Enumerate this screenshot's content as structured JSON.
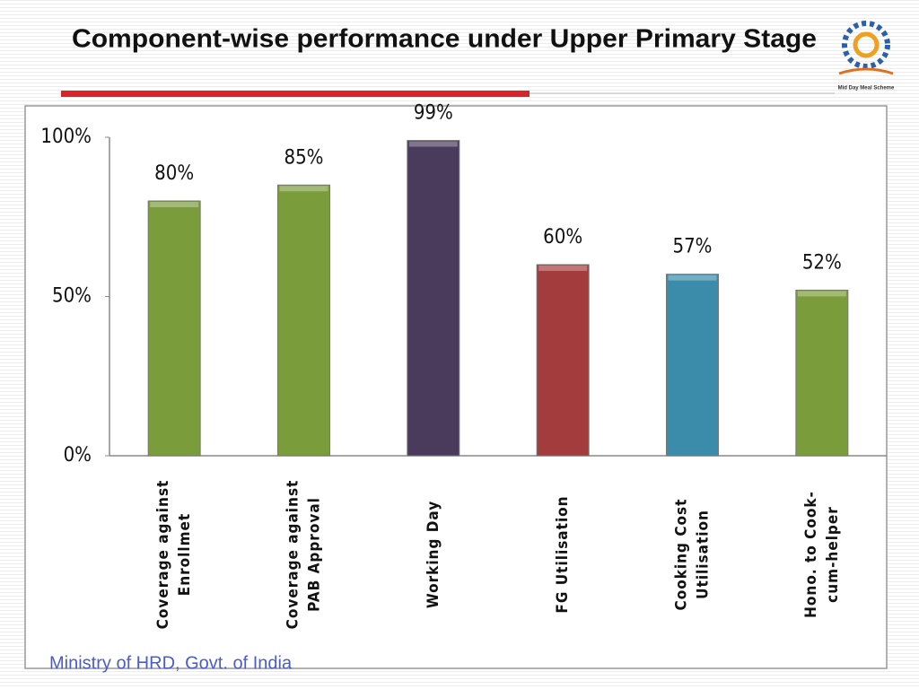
{
  "chart_data": {
    "type": "bar",
    "title": "Component-wise performance under Upper Primary Stage",
    "categories": [
      [
        "Coverage against",
        "Enrollmet"
      ],
      [
        "Coverage against",
        "PAB Approval"
      ],
      [
        "Working Day"
      ],
      [
        "FG Utilisation"
      ],
      [
        "Cooking Cost",
        "Utilisation"
      ],
      [
        "Hono. to Cook-",
        "cum-helper"
      ]
    ],
    "values": [
      80,
      85,
      99,
      60,
      57,
      52
    ],
    "value_labels": [
      "80%",
      "85%",
      "99%",
      "60%",
      "57%",
      "52%"
    ],
    "colors": [
      "#7b9c3b",
      "#7b9c3b",
      "#4a3a5c",
      "#a33c3c",
      "#3a8caa",
      "#7b9c3b"
    ],
    "ylim": [
      0,
      100
    ],
    "yticks": [
      {
        "value": 0,
        "label": "0%"
      },
      {
        "value": 50,
        "label": "50%"
      },
      {
        "value": 100,
        "label": "100%"
      }
    ],
    "grid": false
  },
  "footer": "Ministry of HRD, Govt. of India",
  "logo": "Mid Day Meal Scheme"
}
